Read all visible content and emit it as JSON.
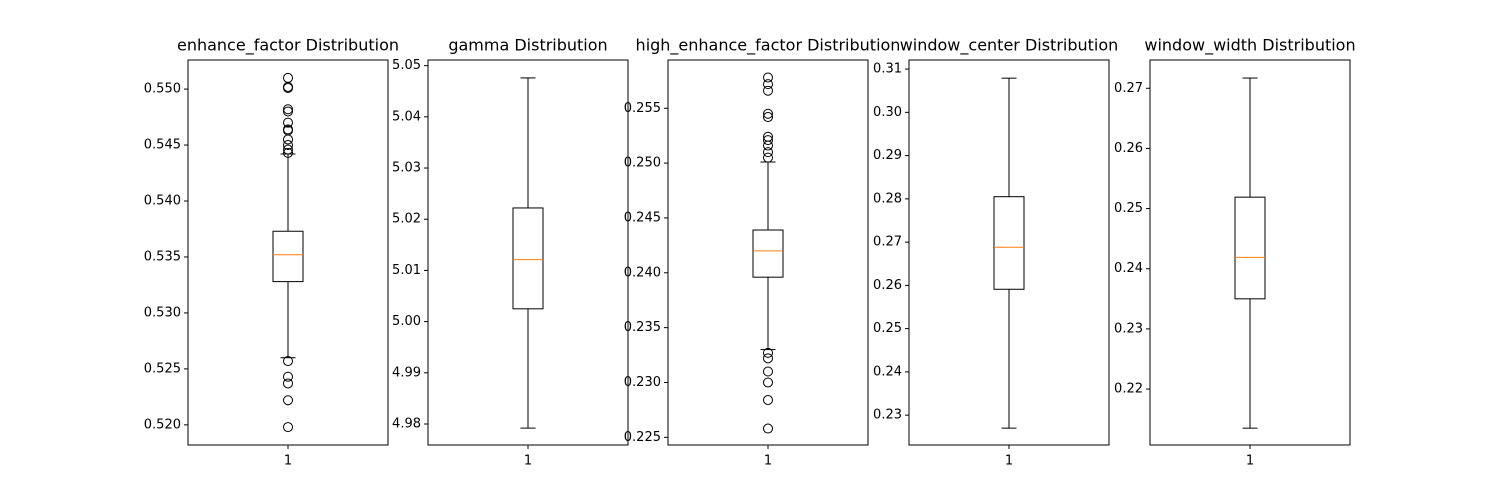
{
  "chart_data": [
    {
      "type": "box",
      "title": "enhance_factor Distribution",
      "categories": [
        "1"
      ],
      "whisker_low": 0.526,
      "q1": 0.5328,
      "median": 0.5352,
      "q3": 0.5373,
      "whisker_high": 0.5442,
      "outliers": [
        0.551,
        0.5502,
        0.5501,
        0.5482,
        0.548,
        0.547,
        0.5464,
        0.5463,
        0.5455,
        0.545,
        0.5446,
        0.5443,
        0.5257,
        0.5243,
        0.5237,
        0.5222,
        0.5198
      ],
      "ylim": [
        0.5182,
        0.5526
      ],
      "yticks": [
        {
          "value": 0.52,
          "label": "0.520"
        },
        0.525,
        {
          "value": 0.53,
          "label": "0.530"
        },
        0.535,
        {
          "value": 0.54,
          "label": "0.540"
        },
        0.545,
        {
          "value": 0.55,
          "label": "0.550"
        }
      ],
      "color": "#000000",
      "median_color": "#ff7f0e"
    },
    {
      "type": "box",
      "title": "gamma Distribution",
      "categories": [
        "1"
      ],
      "whisker_low": 4.9792,
      "q1": 5.0025,
      "median": 5.0121,
      "q3": 5.0222,
      "whisker_high": 5.0476,
      "outliers": [],
      "ylim": [
        4.9759,
        5.0511
      ],
      "yticks": [
        4.98,
        4.99,
        {
          "value": 5.0,
          "label": "5.00"
        },
        5.01,
        5.02,
        5.03,
        5.04,
        5.05
      ],
      "color": "#000000",
      "median_color": "#ff7f0e"
    },
    {
      "type": "box",
      "title": "high_enhance_factor Distribution",
      "categories": [
        "1"
      ],
      "whisker_low": 0.233,
      "q1": 0.2396,
      "median": 0.242,
      "q3": 0.2439,
      "whisker_high": 0.2501,
      "outliers": [
        0.2578,
        0.2572,
        0.2566,
        0.2545,
        0.2542,
        0.2524,
        0.2521,
        0.2516,
        0.251,
        0.2505,
        0.2327,
        0.2322,
        0.231,
        0.23,
        0.2284,
        0.2258
      ],
      "ylim": [
        0.2243,
        0.2594
      ],
      "yticks": [
        0.225,
        {
          "value": 0.23,
          "label": "0.230"
        },
        0.235,
        {
          "value": 0.24,
          "label": "0.240"
        },
        0.245,
        {
          "value": 0.25,
          "label": "0.250"
        },
        0.255
      ],
      "color": "#000000",
      "median_color": "#ff7f0e"
    },
    {
      "type": "box",
      "title": "window_center Distribution",
      "categories": [
        "1"
      ],
      "whisker_low": 0.227,
      "q1": 0.2591,
      "median": 0.2688,
      "q3": 0.2805,
      "whisker_high": 0.3079,
      "outliers": [],
      "ylim": [
        0.2231,
        0.3121
      ],
      "yticks": [
        0.23,
        0.24,
        0.25,
        0.26,
        0.27,
        0.28,
        0.29,
        {
          "value": 0.3,
          "label": "0.30"
        },
        0.31
      ],
      "color": "#000000",
      "median_color": "#ff7f0e"
    },
    {
      "type": "box",
      "title": "window_width Distribution",
      "categories": [
        "1"
      ],
      "whisker_low": 0.2135,
      "q1": 0.235,
      "median": 0.2419,
      "q3": 0.2519,
      "whisker_high": 0.2717,
      "outliers": [],
      "ylim": [
        0.2107,
        0.2747
      ],
      "yticks": [
        0.22,
        0.23,
        0.24,
        0.25,
        0.26,
        0.27
      ],
      "color": "#000000",
      "median_color": "#ff7f0e"
    }
  ]
}
